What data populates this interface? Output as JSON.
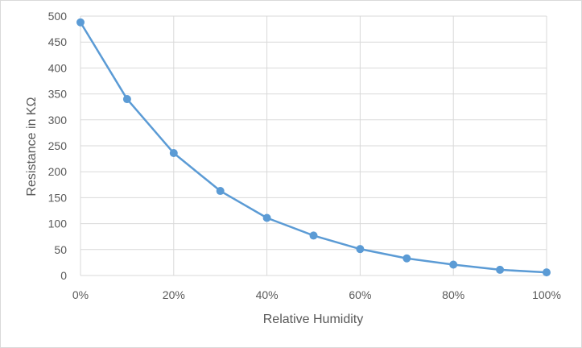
{
  "chart_data": {
    "type": "line",
    "title": "",
    "xlabel": "Relative Humidity",
    "ylabel": "Resistance in KΩ",
    "x": [
      0,
      10,
      20,
      30,
      40,
      50,
      60,
      70,
      80,
      90,
      100
    ],
    "x_tick_values": [
      0,
      20,
      40,
      60,
      80,
      100
    ],
    "x_tick_labels": [
      "0%",
      "20%",
      "40%",
      "60%",
      "80%",
      "100%"
    ],
    "xlim": [
      0,
      100
    ],
    "ylim": [
      0,
      500
    ],
    "y_tick_values": [
      0,
      50,
      100,
      150,
      200,
      250,
      300,
      350,
      400,
      450,
      500
    ],
    "series": [
      {
        "values": [
          488,
          340,
          236,
          163,
          111,
          77,
          51,
          33,
          21,
          11,
          6
        ],
        "color": "#5b9bd5"
      }
    ],
    "grid": true,
    "legend": "none",
    "line_color": "#5b9bd5",
    "grid_color": "#d9d9d9",
    "axis_text_color": "#595959"
  }
}
